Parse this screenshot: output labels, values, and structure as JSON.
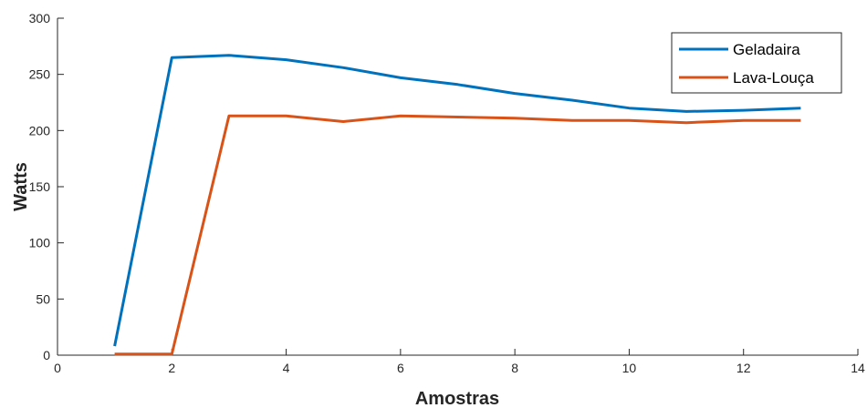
{
  "chart_data": {
    "type": "line",
    "title": "",
    "xlabel": "Amostras",
    "ylabel": "Watts",
    "xlim": [
      0,
      14
    ],
    "ylim": [
      0,
      300
    ],
    "xticks": [
      0,
      2,
      4,
      6,
      8,
      10,
      12,
      14
    ],
    "yticks": [
      0,
      50,
      100,
      150,
      200,
      250,
      300
    ],
    "grid": false,
    "legend_position": "top-right",
    "x": [
      1,
      2,
      3,
      4,
      5,
      6,
      7,
      8,
      9,
      10,
      11,
      12,
      13
    ],
    "series": [
      {
        "name": "Geladaira",
        "color": "#0072BD",
        "values": [
          8,
          265,
          267,
          263,
          256,
          247,
          241,
          233,
          227,
          220,
          217,
          218,
          220
        ]
      },
      {
        "name": "Lava-Louça",
        "color": "#D95319",
        "values": [
          1,
          1,
          213,
          213,
          208,
          213,
          212,
          211,
          209,
          209,
          207,
          209,
          209
        ]
      }
    ]
  }
}
